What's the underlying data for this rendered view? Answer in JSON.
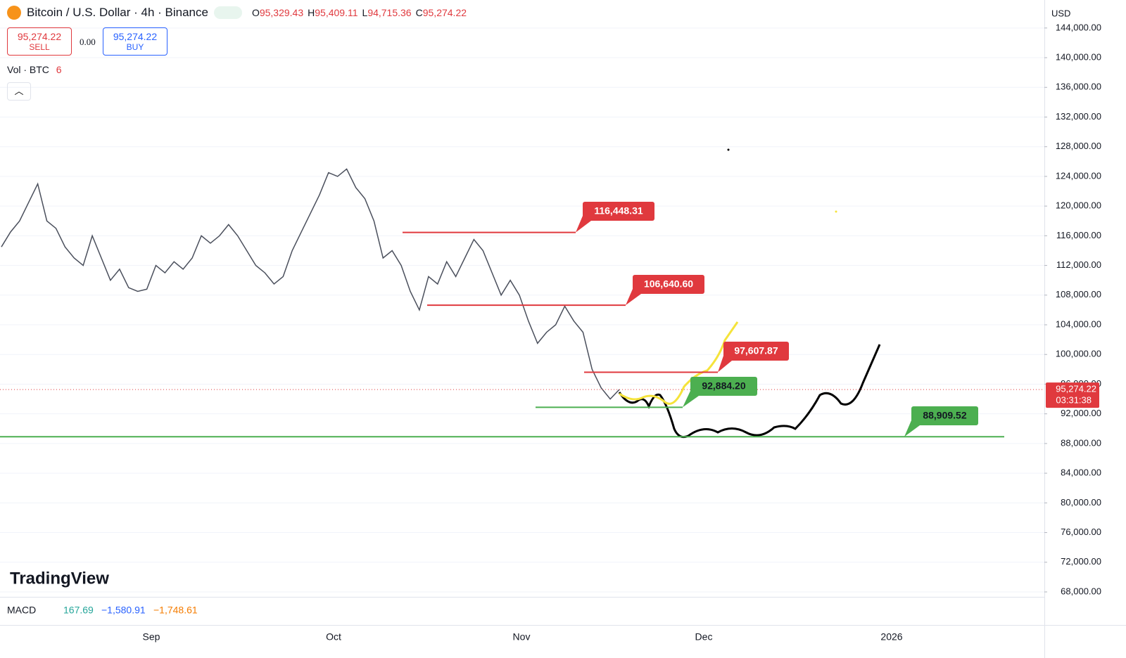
{
  "header": {
    "symbol": "Bitcoin / U.S. Dollar · 4h · Binance",
    "ohlc": [
      {
        "key": "O",
        "value": "95,329.43"
      },
      {
        "key": "H",
        "value": "95,409.11"
      },
      {
        "key": "L",
        "value": "94,715.36"
      },
      {
        "key": "C",
        "value": "95,274.22"
      }
    ],
    "sell_price": "95,274.22",
    "sell": "SELL",
    "spread": "0.00",
    "buy_price": "95,274.22",
    "buy": "BUY",
    "volume_label": "Vol · BTC",
    "volume_value": "6"
  },
  "currency": "USD",
  "watermark": "TradingView",
  "macd": {
    "label": "MACD",
    "values": [
      "167.69",
      "−1,580.91",
      "−1,748.61"
    ]
  },
  "chart_data": {
    "type": "line",
    "color": "#4a4f5c",
    "values": [
      114500,
      116500,
      118000,
      120500,
      123000,
      118000,
      117000,
      114500,
      113000,
      112000,
      116000,
      113000,
      110000,
      111500,
      109000,
      108500,
      108800,
      112000,
      111000,
      112500,
      111500,
      113000,
      116000,
      115000,
      116000,
      117500,
      116000,
      114000,
      112000,
      111000,
      109500,
      110500,
      114000,
      116500,
      119000,
      121500,
      124500,
      124000,
      125000,
      122500,
      121000,
      118000,
      113000,
      114000,
      112000,
      108500,
      106000,
      110500,
      109500,
      112500,
      110500,
      113000,
      115500,
      114000,
      111000,
      108000,
      110000,
      108000,
      104500,
      101500,
      103000,
      104000,
      106500,
      104500,
      103000,
      98000,
      95500,
      94000,
      95274.22
    ],
    "ylim": [
      67431,
      147773
    ],
    "yticks": [
      {
        "value": 68000,
        "label": "68,000.00"
      },
      {
        "value": 72000,
        "label": "72,000.00"
      },
      {
        "value": 76000,
        "label": "76,000.00"
      },
      {
        "value": 80000,
        "label": "80,000.00"
      },
      {
        "value": 84000,
        "label": "84,000.00"
      },
      {
        "value": 88000,
        "label": "88,000.00"
      },
      {
        "value": 92000,
        "label": "92,000.00"
      },
      {
        "value": 96000,
        "label": "96,000.00"
      },
      {
        "value": 100000,
        "label": "100,000.00"
      },
      {
        "value": 104000,
        "label": "104,000.00"
      },
      {
        "value": 108000,
        "label": "108,000.00"
      },
      {
        "value": 112000,
        "label": "112,000.00"
      },
      {
        "value": 116000,
        "label": "116,000.00"
      },
      {
        "value": 120000,
        "label": "120,000.00"
      },
      {
        "value": 124000,
        "label": "124,000.00"
      },
      {
        "value": 128000,
        "label": "128,000.00"
      },
      {
        "value": 132000,
        "label": "132,000.00"
      },
      {
        "value": 136000,
        "label": "136,000.00"
      },
      {
        "value": 140000,
        "label": "140,000.00"
      },
      {
        "value": 144000,
        "label": "144,000.00"
      }
    ],
    "grid": true,
    "x_labels": [
      "Sep",
      "Oct",
      "Nov",
      "Dec",
      "2026"
    ],
    "last_price": {
      "value": 95274.22,
      "label": "95,274.22"
    },
    "countdown": "03:31:38",
    "levels": [
      {
        "value": 116448.31,
        "label": "116,448.31",
        "color": "#e0393e"
      },
      {
        "value": 106640.6,
        "label": "106,640.60",
        "color": "#e0393e"
      },
      {
        "value": 97607.87,
        "label": "97,607.87",
        "color": "#e0393e"
      },
      {
        "value": 92884.2,
        "label": "92,884.20",
        "color": "#4caf50"
      },
      {
        "value": 88909.52,
        "label": "88,909.52",
        "color": "#4caf50"
      }
    ]
  }
}
